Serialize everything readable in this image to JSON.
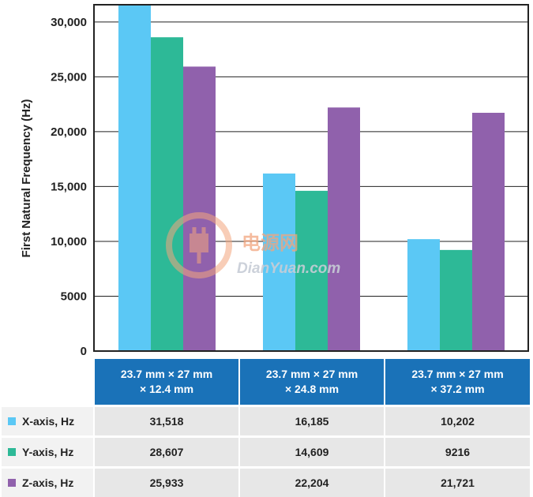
{
  "chart_data": {
    "type": "bar",
    "ylabel": "First Natural Frequency (Hz)",
    "xlabel": "",
    "ylim": [
      0,
      31500
    ],
    "yticks": [
      0,
      5000,
      10000,
      15000,
      20000,
      25000,
      30000
    ],
    "ytick_labels": [
      "0",
      "5000",
      "10,000",
      "15,000",
      "20,000",
      "25,000",
      "30,000"
    ],
    "grid": "horizontal",
    "categories": [
      [
        "23.7 mm × 27 mm",
        "× 12.4 mm"
      ],
      [
        "23.7 mm × 27 mm",
        "× 24.8 mm"
      ],
      [
        "23.7 mm × 27 mm",
        "× 37.2 mm"
      ]
    ],
    "series": [
      {
        "name": "X-axis, Hz",
        "color": "#5bc8f5",
        "values": [
          31518,
          16185,
          10202
        ],
        "labels": [
          "31,518",
          "16,185",
          "10,202"
        ]
      },
      {
        "name": "Y-axis, Hz",
        "color": "#2db997",
        "values": [
          28607,
          14609,
          9216
        ],
        "labels": [
          "28,607",
          "14,609",
          "9216"
        ]
      },
      {
        "name": "Z-axis, Hz",
        "color": "#9061ac",
        "values": [
          25933,
          22204,
          21721
        ],
        "labels": [
          "25,933",
          "22,204",
          "21,721"
        ]
      }
    ]
  },
  "watermark": {
    "cn": "电源网",
    "en": "DianYuan.com"
  }
}
